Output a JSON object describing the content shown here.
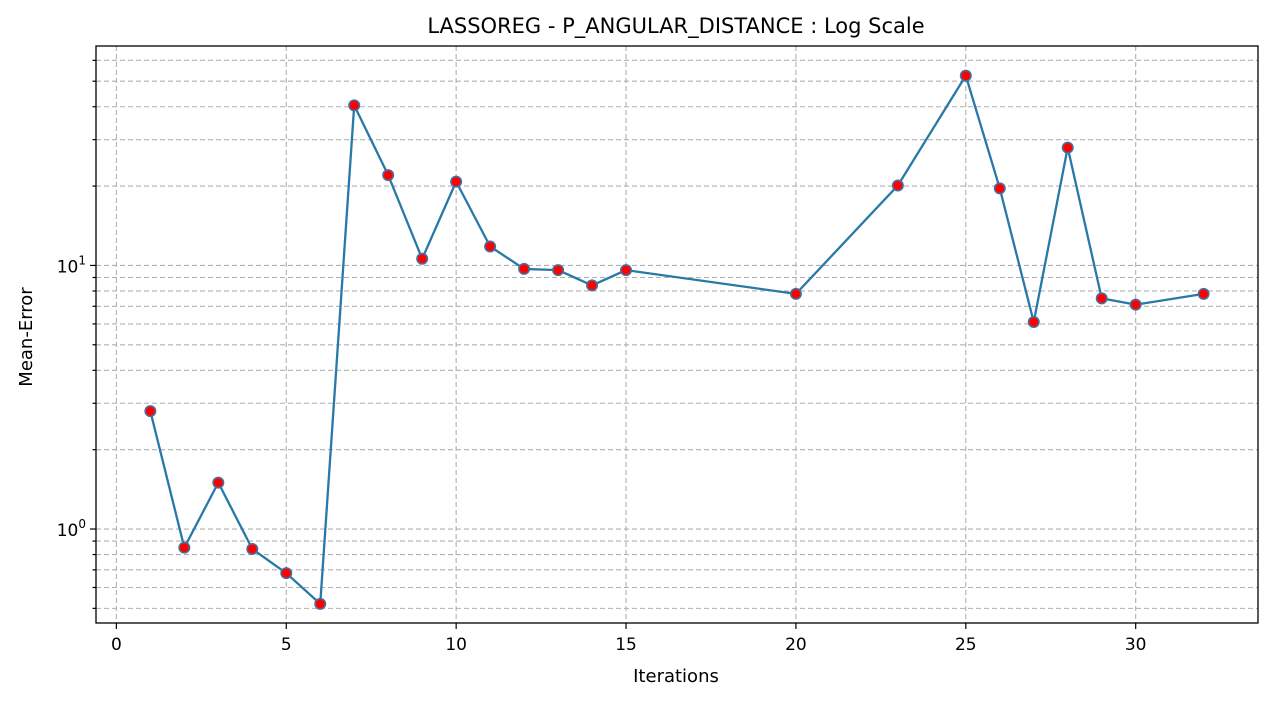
{
  "chart_data": {
    "type": "line",
    "title": "LASSOREG - P_ANGULAR_DISTANCE : Log Scale",
    "xlabel": "Iterations",
    "ylabel": "Mean-Error",
    "yscale": "log",
    "grid": true,
    "xlim": [
      -0.6,
      33.6
    ],
    "ylim": [
      0.44,
      68
    ],
    "x_ticks": [
      0,
      5,
      10,
      15,
      20,
      25,
      30
    ],
    "y_major_ticks": [
      {
        "value": 1,
        "base": "10",
        "exp": "0"
      },
      {
        "value": 10,
        "base": "10",
        "exp": "1"
      }
    ],
    "y_minor_ticks": [
      0.5,
      0.6,
      0.7,
      0.8,
      0.9,
      2,
      3,
      4,
      5,
      6,
      7,
      8,
      9,
      20,
      30,
      40,
      50,
      60
    ],
    "line_color": "#2878a8",
    "marker_color": "#ff0000",
    "marker_edge_color": "#4a6e9a",
    "series": [
      {
        "x": [
          1,
          2,
          3,
          4,
          5,
          6,
          7,
          8,
          9,
          10,
          11,
          12,
          13,
          14,
          15,
          20,
          23,
          25,
          26,
          27,
          28,
          29,
          30,
          32
        ],
        "values": [
          2.8,
          0.85,
          1.5,
          0.84,
          0.68,
          0.52,
          40.5,
          22.0,
          10.6,
          20.8,
          11.8,
          9.7,
          9.6,
          8.4,
          9.6,
          7.8,
          20.1,
          52.5,
          19.6,
          6.1,
          28.0,
          7.5,
          7.1,
          7.8
        ]
      }
    ]
  }
}
